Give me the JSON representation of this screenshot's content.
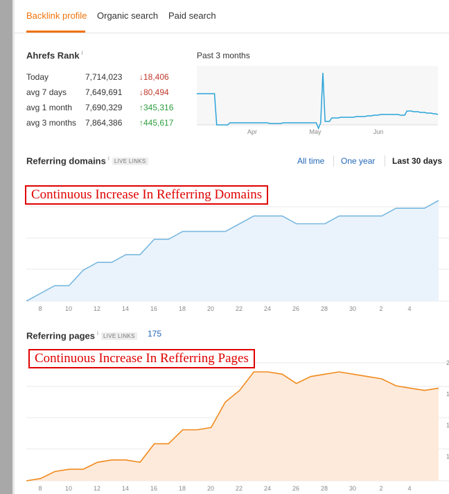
{
  "tabs": [
    {
      "label": "Backlink profile",
      "active": true
    },
    {
      "label": "Organic search",
      "active": false
    },
    {
      "label": "Paid search",
      "active": false
    }
  ],
  "ahrefs_rank": {
    "title": "Ahrefs Rank",
    "info": "i",
    "rows": [
      {
        "label": "Today",
        "value": "7,714,023",
        "change": "18,406",
        "direction": "down"
      },
      {
        "label": "avg 7 days",
        "value": "7,649,691",
        "change": "80,494",
        "direction": "down"
      },
      {
        "label": "avg 1 month",
        "value": "7,690,329",
        "change": "345,316",
        "direction": "up"
      },
      {
        "label": "avg 3 months",
        "value": "7,864,386",
        "change": "445,617",
        "direction": "up"
      }
    ],
    "period_label": "Past 3 months"
  },
  "rank_chart": {
    "type": "line",
    "x_ticks": [
      "Apr",
      "May",
      "Jun"
    ],
    "line_color": "#2aa3d8",
    "values": [
      40,
      40,
      40,
      40,
      40,
      40,
      40,
      40,
      40,
      85,
      85,
      85,
      85,
      85,
      85,
      82,
      82,
      82,
      82,
      82,
      82,
      82,
      82,
      82,
      82,
      82,
      82,
      82,
      82,
      82,
      82,
      82,
      82,
      83,
      83,
      83,
      83,
      83,
      83,
      82,
      82,
      82,
      82,
      82,
      82,
      82,
      82,
      82,
      82,
      82,
      82,
      82,
      82,
      82,
      82,
      90,
      82,
      10,
      80,
      80,
      80,
      75,
      75,
      75,
      75,
      74,
      74,
      74,
      74,
      74,
      74,
      74,
      73,
      73,
      73,
      73,
      73,
      72,
      72,
      72,
      71,
      71,
      71,
      70,
      70,
      70,
      70,
      70,
      70,
      70,
      70,
      70,
      71,
      71,
      71,
      65,
      65,
      65,
      66,
      66,
      66,
      67,
      67,
      67,
      68,
      68,
      68,
      69,
      69,
      70
    ]
  },
  "referring_domains": {
    "title": "Referring domains",
    "info": "i",
    "badge": "LIVE LINKS",
    "periods": [
      {
        "label": "All time",
        "active": false
      },
      {
        "label": "One year",
        "active": false
      },
      {
        "label": "Last 30 days",
        "active": true
      }
    ],
    "annotation": "Continuous Increase In Refferring Domains"
  },
  "referring_pages": {
    "title": "Referring pages",
    "info": "i",
    "badge": "LIVE LINKS",
    "count": "175",
    "annotation": "Continuous Increase In Refferring Pages",
    "y_tick_partial": [
      "2",
      "1",
      "1",
      "1"
    ]
  },
  "chart_data": [
    {
      "type": "area",
      "title": "Referring domains",
      "color": "#7ab8e0",
      "fill": "#eaf3fb",
      "x_ticks": [
        "8",
        "10",
        "12",
        "14",
        "16",
        "18",
        "20",
        "22",
        "24",
        "26",
        "28",
        "30",
        "2",
        "4"
      ],
      "y": [
        0,
        1,
        2,
        2,
        4,
        5,
        5,
        6,
        6,
        8,
        8,
        9,
        9,
        9,
        9,
        10,
        11,
        11,
        11,
        10,
        10,
        10,
        11,
        11,
        11,
        11,
        12,
        12,
        12,
        13
      ],
      "grid": true
    },
    {
      "type": "area",
      "title": "Referring pages",
      "color": "#f08a1c",
      "fill": "#fdeadb",
      "x_ticks": [
        "8",
        "10",
        "12",
        "14",
        "16",
        "18",
        "20",
        "22",
        "24",
        "26",
        "28",
        "30",
        "2",
        "4"
      ],
      "y": [
        0,
        1,
        4,
        5,
        5,
        8,
        9,
        9,
        8,
        16,
        16,
        22,
        22,
        23,
        34,
        39,
        47,
        47,
        46,
        42,
        45,
        46,
        47,
        46,
        45,
        44,
        41,
        40,
        39,
        40
      ],
      "grid": true
    }
  ]
}
